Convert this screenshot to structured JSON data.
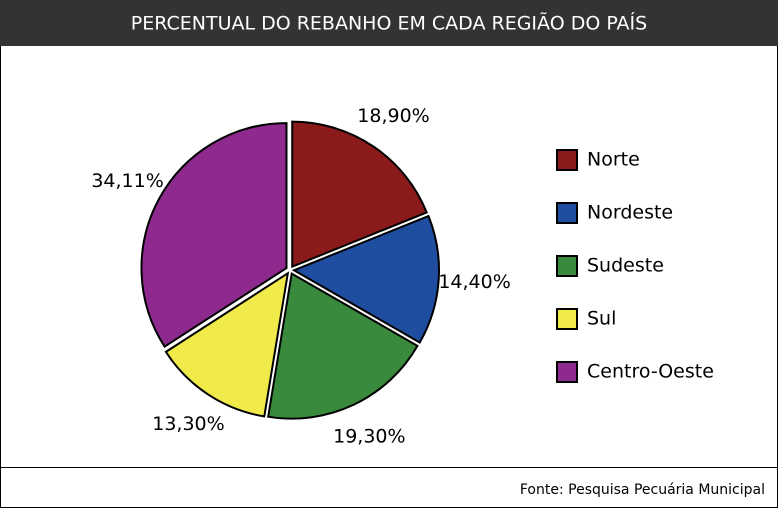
{
  "chart_data": {
    "type": "pie",
    "title": "PERCENTUAL DO REBANHO EM CADA REGIÃO DO PAÍS",
    "categories": [
      "Norte",
      "Nordeste",
      "Sudeste",
      "Sul",
      "Centro-Oeste"
    ],
    "values": [
      18.9,
      14.4,
      19.3,
      13.3,
      34.11
    ],
    "value_labels": [
      "18,90%",
      "14,40%",
      "19,30%",
      "13,30%",
      "34,11%"
    ],
    "colors": [
      "#8b1a1a",
      "#1f4ea0",
      "#3a8a3e",
      "#f0ea4a",
      "#8e2a8e"
    ],
    "source": "Fonte: Pesquisa Pecuária Municipal"
  }
}
